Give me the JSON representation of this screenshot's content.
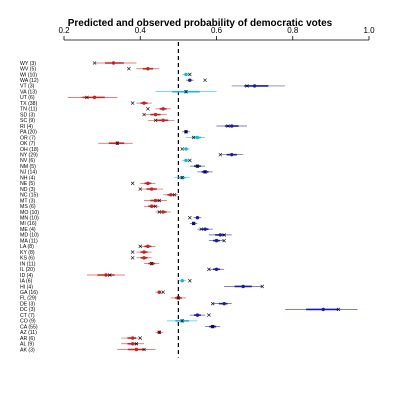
{
  "chart_data": {
    "type": "scatter",
    "title": "Predicted and observed probability of democratic votes",
    "xlim": [
      0.2,
      1.0
    ],
    "xticks": [
      0.2,
      0.4,
      0.6,
      0.8,
      1.0
    ],
    "xtick_labels": [
      "0.2",
      "0.4",
      "0.6",
      "0.8",
      "1.0"
    ],
    "reference_line": 0.5,
    "colors": {
      "red": "#cc1f1f",
      "blue": "#1a1aa6",
      "cyan": "#1ab8d4",
      "observed": "#000000",
      "reference": "#000000"
    },
    "states": [
      {
        "label": "WY (3)",
        "pred": 0.33,
        "lo": 0.28,
        "hi": 0.39,
        "obs": 0.28,
        "color": "red"
      },
      {
        "label": "WV (5)",
        "pred": 0.42,
        "lo": 0.39,
        "hi": 0.45,
        "obs": 0.37,
        "color": "red"
      },
      {
        "label": "WI (10)",
        "pred": 0.52,
        "lo": 0.51,
        "hi": 0.53,
        "obs": 0.53,
        "color": "cyan"
      },
      {
        "label": "WA (12)",
        "pred": 0.53,
        "lo": 0.52,
        "hi": 0.54,
        "obs": 0.57,
        "color": "blue"
      },
      {
        "label": "VT (3)",
        "pred": 0.7,
        "lo": 0.64,
        "hi": 0.78,
        "obs": 0.68,
        "color": "blue"
      },
      {
        "label": "VA (13)",
        "pred": 0.52,
        "lo": 0.44,
        "hi": 0.6,
        "obs": 0.52,
        "color": "cyan"
      },
      {
        "label": "UT (6)",
        "pred": 0.28,
        "lo": 0.21,
        "hi": 0.34,
        "obs": 0.26,
        "color": "red"
      },
      {
        "label": "TX (38)",
        "pred": 0.41,
        "lo": 0.39,
        "hi": 0.43,
        "obs": 0.38,
        "color": "red"
      },
      {
        "label": "TN (11)",
        "pred": 0.46,
        "lo": 0.44,
        "hi": 0.48,
        "obs": 0.42,
        "color": "red"
      },
      {
        "label": "SD (3)",
        "pred": 0.44,
        "lo": 0.41,
        "hi": 0.47,
        "obs": 0.41,
        "color": "red"
      },
      {
        "label": "SC (9)",
        "pred": 0.46,
        "lo": 0.42,
        "hi": 0.49,
        "obs": 0.44,
        "color": "red"
      },
      {
        "label": "RI (4)",
        "pred": 0.64,
        "lo": 0.6,
        "hi": 0.68,
        "obs": 0.63,
        "color": "blue"
      },
      {
        "label": "PA (20)",
        "pred": 0.52,
        "lo": 0.51,
        "hi": 0.53,
        "obs": 0.52,
        "color": "blue"
      },
      {
        "label": "OR (7)",
        "pred": 0.55,
        "lo": 0.52,
        "hi": 0.57,
        "obs": 0.54,
        "color": "cyan"
      },
      {
        "label": "OK (7)",
        "pred": 0.34,
        "lo": 0.29,
        "hi": 0.38,
        "obs": 0.34,
        "color": "red"
      },
      {
        "label": "OH (18)",
        "pred": 0.52,
        "lo": 0.51,
        "hi": 0.53,
        "obs": 0.51,
        "color": "cyan"
      },
      {
        "label": "NY (29)",
        "pred": 0.64,
        "lo": 0.61,
        "hi": 0.67,
        "obs": 0.61,
        "color": "blue"
      },
      {
        "label": "NV (6)",
        "pred": 0.52,
        "lo": 0.51,
        "hi": 0.53,
        "obs": 0.53,
        "color": "cyan"
      },
      {
        "label": "NM (5)",
        "pred": 0.55,
        "lo": 0.53,
        "hi": 0.57,
        "obs": 0.55,
        "color": "blue"
      },
      {
        "label": "NJ (14)",
        "pred": 0.57,
        "lo": 0.55,
        "hi": 0.59,
        "obs": 0.57,
        "color": "blue"
      },
      {
        "label": "NH (4)",
        "pred": 0.51,
        "lo": 0.49,
        "hi": 0.53,
        "obs": 0.51,
        "color": "cyan"
      },
      {
        "label": "NE (5)",
        "pred": 0.42,
        "lo": 0.4,
        "hi": 0.44,
        "obs": 0.38,
        "color": "red"
      },
      {
        "label": "ND (3)",
        "pred": 0.43,
        "lo": 0.4,
        "hi": 0.46,
        "obs": 0.4,
        "color": "red"
      },
      {
        "label": "NC (15)",
        "pred": 0.48,
        "lo": 0.46,
        "hi": 0.5,
        "obs": 0.49,
        "color": "red"
      },
      {
        "label": "MT (3)",
        "pred": 0.44,
        "lo": 0.41,
        "hi": 0.47,
        "obs": 0.45,
        "color": "red"
      },
      {
        "label": "MS (6)",
        "pred": 0.43,
        "lo": 0.41,
        "hi": 0.45,
        "obs": 0.44,
        "color": "red"
      },
      {
        "label": "MO (10)",
        "pred": 0.46,
        "lo": 0.44,
        "hi": 0.48,
        "obs": 0.45,
        "color": "red"
      },
      {
        "label": "MN (10)",
        "pred": 0.55,
        "lo": 0.54,
        "hi": 0.56,
        "obs": 0.53,
        "color": "blue"
      },
      {
        "label": "MI (16)",
        "pred": 0.54,
        "lo": 0.53,
        "hi": 0.55,
        "obs": 0.54,
        "color": "blue"
      },
      {
        "label": "ME (4)",
        "pred": 0.57,
        "lo": 0.55,
        "hi": 0.59,
        "obs": 0.56,
        "color": "blue"
      },
      {
        "label": "MD (10)",
        "pred": 0.61,
        "lo": 0.58,
        "hi": 0.64,
        "obs": 0.62,
        "color": "blue"
      },
      {
        "label": "MA (11)",
        "pred": 0.6,
        "lo": 0.58,
        "hi": 0.62,
        "obs": 0.62,
        "color": "blue"
      },
      {
        "label": "LA (8)",
        "pred": 0.42,
        "lo": 0.4,
        "hi": 0.44,
        "obs": 0.4,
        "color": "red"
      },
      {
        "label": "KY (8)",
        "pred": 0.41,
        "lo": 0.39,
        "hi": 0.43,
        "obs": 0.38,
        "color": "red"
      },
      {
        "label": "KS (6)",
        "pred": 0.41,
        "lo": 0.39,
        "hi": 0.43,
        "obs": 0.38,
        "color": "red"
      },
      {
        "label": "IN (11)",
        "pred": 0.43,
        "lo": 0.41,
        "hi": 0.45,
        "obs": 0.43,
        "color": "red"
      },
      {
        "label": "IL (20)",
        "pred": 0.6,
        "lo": 0.58,
        "hi": 0.62,
        "obs": 0.58,
        "color": "blue"
      },
      {
        "label": "ID (4)",
        "pred": 0.31,
        "lo": 0.26,
        "hi": 0.36,
        "obs": 0.32,
        "color": "red"
      },
      {
        "label": "IA (6)",
        "pred": 0.51,
        "lo": 0.5,
        "hi": 0.52,
        "obs": 0.53,
        "color": "cyan"
      },
      {
        "label": "HI (4)",
        "pred": 0.67,
        "lo": 0.62,
        "hi": 0.72,
        "obs": 0.72,
        "color": "blue"
      },
      {
        "label": "GA (16)",
        "pred": 0.45,
        "lo": 0.44,
        "hi": 0.46,
        "obs": 0.46,
        "color": "red"
      },
      {
        "label": "FL (29)",
        "pred": 0.5,
        "lo": 0.48,
        "hi": 0.52,
        "obs": 0.5,
        "color": "red"
      },
      {
        "label": "DE (3)",
        "pred": 0.62,
        "lo": 0.59,
        "hi": 0.64,
        "obs": 0.59,
        "color": "blue"
      },
      {
        "label": "DC (3)",
        "pred": 0.88,
        "lo": 0.78,
        "hi": 0.97,
        "obs": 0.92,
        "color": "blue"
      },
      {
        "label": "CT (7)",
        "pred": 0.55,
        "lo": 0.53,
        "hi": 0.57,
        "obs": 0.58,
        "color": "blue"
      },
      {
        "label": "CO (9)",
        "pred": 0.51,
        "lo": 0.47,
        "hi": 0.55,
        "obs": 0.51,
        "color": "cyan"
      },
      {
        "label": "CA (55)",
        "pred": 0.59,
        "lo": 0.57,
        "hi": 0.61,
        "obs": 0.59,
        "color": "blue"
      },
      {
        "label": "AZ (11)",
        "pred": 0.45,
        "lo": 0.44,
        "hi": 0.46,
        "obs": 0.45,
        "color": "red"
      },
      {
        "label": "AR (6)",
        "pred": 0.38,
        "lo": 0.35,
        "hi": 0.4,
        "obs": 0.4,
        "color": "red"
      },
      {
        "label": "AL (9)",
        "pred": 0.38,
        "lo": 0.35,
        "hi": 0.41,
        "obs": 0.39,
        "color": "red"
      },
      {
        "label": "AK (3)",
        "pred": 0.39,
        "lo": 0.34,
        "hi": 0.44,
        "obs": 0.41,
        "color": "red"
      }
    ]
  }
}
